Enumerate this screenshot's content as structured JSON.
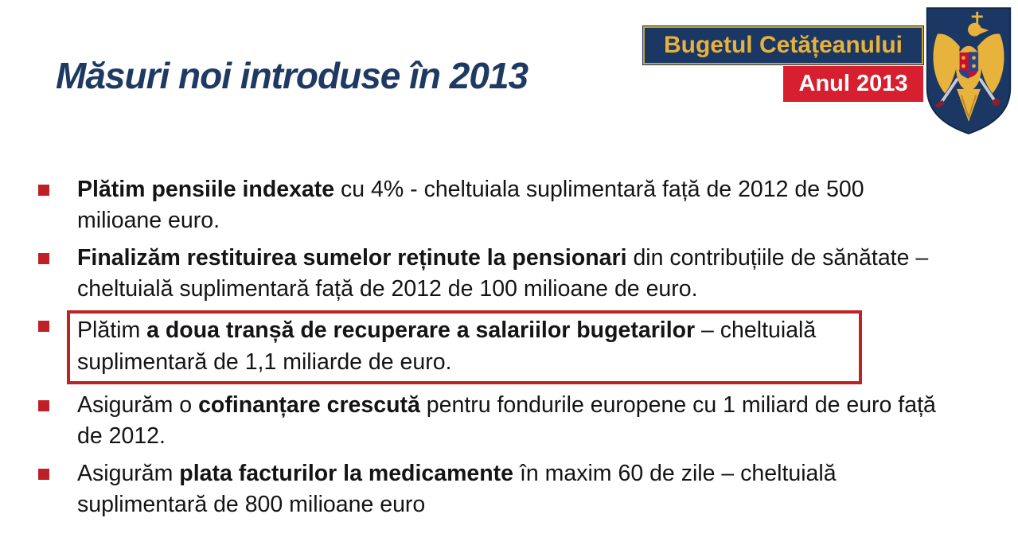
{
  "slide": {
    "title": "Măsuri noi introduse în 2013",
    "background_color": "#ffffff"
  },
  "header_badge": {
    "banner_label": "Bugetul Cetățeanului",
    "year_label": "Anul 2013",
    "banner_bg": "#1b3764",
    "banner_text_color": "#e6b23d",
    "banner_border_color": "#c9a23b",
    "year_bg": "#d6202f",
    "year_text_color": "#ffffff"
  },
  "coat_of_arms": {
    "name": "romania-coat-of-arms",
    "shield_color": "#1b3764",
    "eagle_color": "#e8b33c",
    "accent_red": "#c8102e",
    "accent_blue": "#27458f"
  },
  "colors": {
    "title_color": "#1e3a63",
    "text_color": "#141414",
    "bullet_marker": "#bf2025",
    "highlight_border": "#bf2222"
  },
  "bullets": [
    {
      "highlighted": false,
      "runs": [
        {
          "text": "Plătim pensiile indexate",
          "bold": true
        },
        {
          "text": " cu 4% - cheltuiala suplimentară față de 2012 de 500 milioane euro.",
          "bold": false
        }
      ]
    },
    {
      "highlighted": false,
      "runs": [
        {
          "text": "Finalizăm restituirea sumelor reținute la pensionari",
          "bold": true
        },
        {
          "text": " din contribuțiile de sănătate – cheltuială suplimentară față de 2012 de 100 milioane de euro.",
          "bold": false
        }
      ]
    },
    {
      "highlighted": true,
      "runs": [
        {
          "text": "Plătim ",
          "bold": false
        },
        {
          "text": "a doua tranșă de recuperare a salariilor bugetarilor",
          "bold": true
        },
        {
          "text": " – cheltuială suplimentară de 1,1 miliarde de euro.",
          "bold": false
        }
      ]
    },
    {
      "highlighted": false,
      "runs": [
        {
          "text": "Asigurăm o ",
          "bold": false
        },
        {
          "text": "cofinanțare crescută",
          "bold": true
        },
        {
          "text": " pentru fondurile europene cu 1 miliard de euro față de 2012.",
          "bold": false
        }
      ]
    },
    {
      "highlighted": false,
      "runs": [
        {
          "text": "Asigurăm ",
          "bold": false
        },
        {
          "text": "plata facturilor la medicamente",
          "bold": true
        },
        {
          "text": " în maxim 60 de zile – cheltuială suplimentară de 800 milioane euro",
          "bold": false
        }
      ]
    }
  ]
}
